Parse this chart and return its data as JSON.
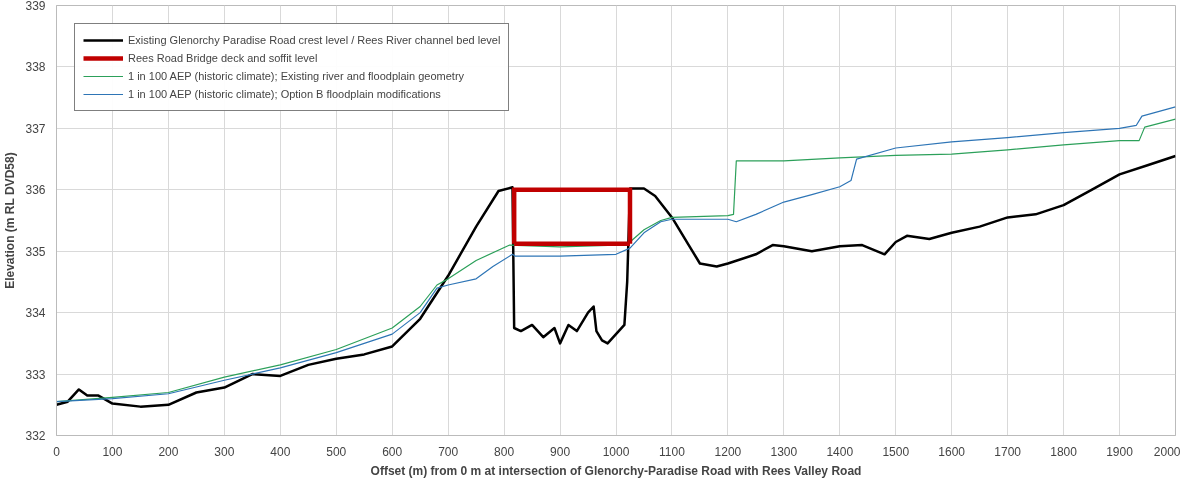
{
  "chart_data": {
    "type": "line",
    "xlabel": "Offset (m) from 0 m at intersection of Glenorchy-Paradise Road with Rees Valley Road",
    "ylabel": "Elevation (m RL DVD58)",
    "xlim": [
      0,
      2000
    ],
    "xticks": [
      0,
      100,
      200,
      300,
      400,
      500,
      600,
      700,
      800,
      900,
      1000,
      1100,
      1200,
      1300,
      1400,
      1500,
      1600,
      1700,
      1800,
      1900,
      2000
    ],
    "ylim": [
      332,
      339
    ],
    "yticks": [
      332,
      333,
      334,
      335,
      336,
      337,
      338,
      339
    ],
    "grid": true,
    "legend": "top left",
    "marker": "none",
    "line_style": "solid",
    "series": [
      {
        "name": "Existing Glenorchy Paradise Road crest level / Rees River channel bed level",
        "color": "#000000",
        "x": [
          0,
          20,
          40,
          55,
          75,
          100,
          150,
          200,
          250,
          300,
          350,
          400,
          450,
          500,
          550,
          600,
          650,
          700,
          750,
          790,
          815,
          818,
          830,
          850,
          870,
          890,
          900,
          915,
          930,
          940,
          950,
          960,
          965,
          975,
          985,
          1000,
          1015,
          1020,
          1025,
          1050,
          1070,
          1100,
          1130,
          1150,
          1180,
          1200,
          1250,
          1280,
          1300,
          1350,
          1400,
          1440,
          1480,
          1500,
          1520,
          1560,
          1600,
          1650,
          1700,
          1750,
          1800,
          1850,
          1900,
          1950,
          2000
        ],
        "values": [
          332.5,
          332.55,
          332.75,
          332.65,
          332.65,
          332.52,
          332.47,
          332.5,
          332.7,
          332.78,
          333.0,
          332.97,
          333.15,
          333.25,
          333.32,
          333.45,
          333.9,
          334.6,
          335.4,
          335.98,
          336.04,
          333.75,
          333.7,
          333.8,
          333.6,
          333.75,
          333.5,
          333.8,
          333.7,
          333.85,
          334.0,
          334.1,
          333.7,
          333.55,
          333.5,
          333.65,
          333.8,
          334.5,
          336.02,
          336.02,
          335.9,
          335.55,
          335.1,
          334.8,
          334.75,
          334.8,
          334.95,
          335.1,
          335.08,
          335.0,
          335.08,
          335.1,
          334.95,
          335.15,
          335.25,
          335.2,
          335.3,
          335.4,
          335.55,
          335.6,
          335.75,
          336.0,
          336.25,
          336.4,
          336.55
        ]
      },
      {
        "name": "Rees Road Bridge deck and soffit level",
        "color": "#c00000",
        "x": [
          818,
          818,
          1025,
          1025
        ],
        "values": [
          335.12,
          336.0,
          336.0,
          335.12
        ]
      },
      {
        "color": "#c00000",
        "x": [
          818,
          1025
        ],
        "values": [
          335.12,
          335.12
        ]
      },
      {
        "name": "1 in 100 AEP (historic climate); Existing river and floodplain geometry",
        "color": "#2ca05a",
        "x": [
          0,
          100,
          200,
          300,
          400,
          500,
          600,
          650,
          680,
          700,
          750,
          810,
          900,
          1000,
          1025,
          1050,
          1080,
          1100,
          1200,
          1210,
          1215,
          1300,
          1400,
          1500,
          1600,
          1700,
          1800,
          1900,
          1935,
          1945,
          2000
        ],
        "values": [
          332.55,
          332.62,
          332.7,
          332.95,
          333.15,
          333.4,
          333.75,
          334.1,
          334.45,
          334.55,
          334.85,
          335.1,
          335.07,
          335.1,
          335.15,
          335.35,
          335.5,
          335.55,
          335.58,
          335.6,
          336.47,
          336.47,
          336.52,
          336.56,
          336.58,
          336.65,
          336.73,
          336.8,
          336.8,
          337.02,
          337.15
        ]
      },
      {
        "name": "1 in 100 AEP (historic climate); Option B floodplain modifications",
        "color": "#2e75b6",
        "x": [
          0,
          100,
          200,
          300,
          400,
          500,
          600,
          650,
          680,
          700,
          750,
          780,
          815,
          820,
          900,
          1000,
          1025,
          1050,
          1080,
          1100,
          1200,
          1215,
          1250,
          1300,
          1350,
          1400,
          1420,
          1430,
          1500,
          1600,
          1700,
          1800,
          1900,
          1930,
          1940,
          2000
        ],
        "values": [
          332.55,
          332.6,
          332.68,
          332.9,
          333.1,
          333.35,
          333.65,
          334.0,
          334.4,
          334.45,
          334.55,
          334.75,
          334.95,
          334.92,
          334.92,
          334.95,
          335.05,
          335.3,
          335.48,
          335.52,
          335.52,
          335.48,
          335.6,
          335.8,
          335.92,
          336.05,
          336.15,
          336.5,
          336.68,
          336.78,
          336.85,
          336.93,
          337.0,
          337.05,
          337.2,
          337.35
        ]
      }
    ]
  }
}
